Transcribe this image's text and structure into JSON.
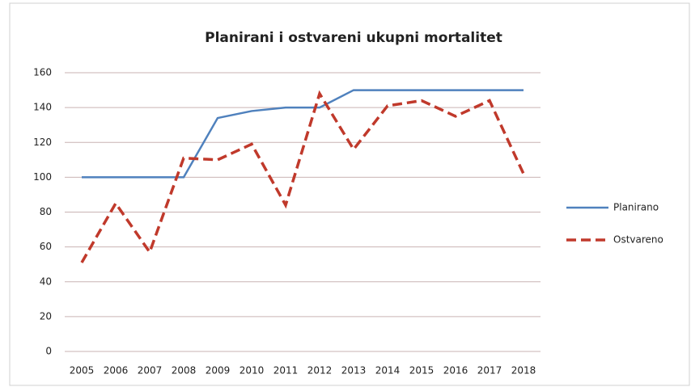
{
  "chart_data": {
    "type": "line",
    "title": "Planirani i ostvareni ukupni mortalitet",
    "categories": [
      "2005",
      "2006",
      "2007",
      "2008",
      "2009",
      "2010",
      "2011",
      "2012",
      "2013",
      "2014",
      "2015",
      "2016",
      "2017",
      "2018"
    ],
    "series": [
      {
        "name": "Planirano",
        "color": "#4f81bd",
        "style": "solid",
        "values": [
          100,
          100,
          100,
          100,
          134,
          138,
          140,
          140,
          150,
          150,
          150,
          150,
          150,
          150
        ]
      },
      {
        "name": "Ostvareno",
        "color": "#c0392b",
        "style": "dashed",
        "values": [
          51,
          85,
          57,
          111,
          110,
          119,
          84,
          148,
          116,
          141,
          144,
          135,
          144,
          102
        ]
      }
    ],
    "ylim": [
      0,
      160
    ],
    "yticks": [
      0,
      20,
      40,
      60,
      80,
      100,
      120,
      140,
      160
    ],
    "grid": true,
    "legend": "right"
  }
}
